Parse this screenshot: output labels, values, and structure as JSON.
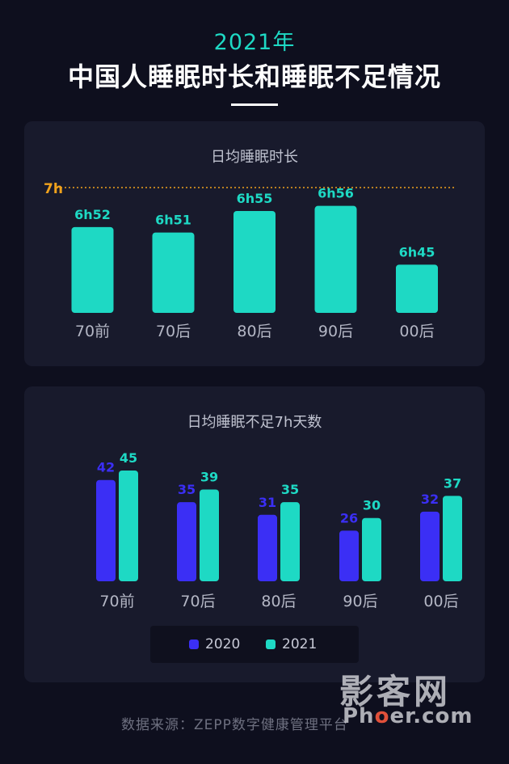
{
  "header": {
    "year": "2021年",
    "title": "中国人睡眠时长和睡眠不足情况"
  },
  "colors": {
    "teal": "#1ed9c4",
    "blue": "#3b2ff5",
    "reference_line": "#f0a21c",
    "category_label": "#b3b6c4"
  },
  "chart_data": [
    {
      "type": "bar",
      "title": "日均睡眠时长",
      "categories": [
        "70前",
        "70后",
        "80后",
        "90后",
        "00后"
      ],
      "values": [
        6.867,
        6.85,
        6.917,
        6.933,
        6.75
      ],
      "value_labels": [
        "6h52",
        "6h51",
        "6h55",
        "6h56",
        "6h45"
      ],
      "reference_line": {
        "value": 7,
        "label": "7h"
      },
      "grid": false
    },
    {
      "type": "bar",
      "title": "日均睡眠不足7h天数",
      "categories": [
        "70前",
        "70后",
        "80后",
        "90后",
        "00后"
      ],
      "series": [
        {
          "name": "2020",
          "values": [
            42,
            35,
            31,
            26,
            32
          ]
        },
        {
          "name": "2021",
          "values": [
            45,
            39,
            35,
            30,
            37
          ]
        }
      ],
      "legend": "bottom",
      "grid": false
    }
  ],
  "footer": {
    "source": "数据来源：ZEPP数字健康管理平台"
  },
  "watermark": {
    "main": "影客网",
    "sub_before": "Ph",
    "sub_accent": "o",
    "sub_after": "er.com"
  }
}
